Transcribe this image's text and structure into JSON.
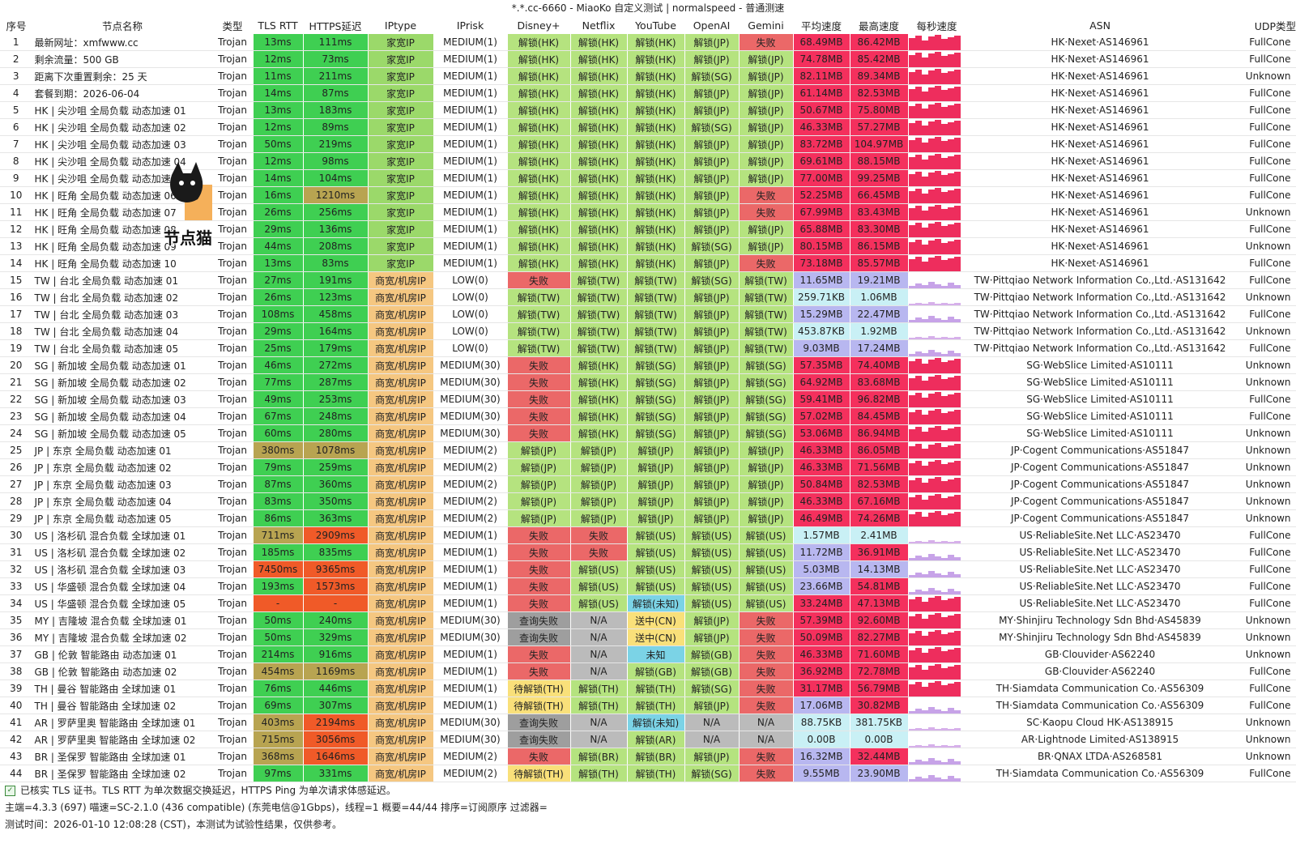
{
  "window": {
    "title": "*.*.cc-6660 - MiaoKo 自定义测试 | normalspeed - 普通测速"
  },
  "headers": [
    "序号",
    "节点名称",
    "类型",
    "TLS RTT",
    "HTTPS延迟",
    "IPtype",
    "IPrisk",
    "Disney+",
    "Netflix",
    "YouTube",
    "OpenAI",
    "Gemini",
    "平均速度",
    "最高速度",
    "每秒速度",
    "ASN",
    "UDP类型"
  ],
  "rows": [
    [
      "1",
      "最新网址：xmfwww.cc",
      "Trojan",
      "13ms",
      "111ms",
      "家宽IP",
      "MEDIUM(1)",
      "解锁(HK)",
      "解锁(HK)",
      "解锁(HK)",
      "解锁(JP)",
      "失败",
      "68.49MB",
      "86.42MB",
      "",
      "HK·Nexet·AS146961",
      "FullCone"
    ],
    [
      "2",
      "剩余流量：500 GB",
      "Trojan",
      "12ms",
      "73ms",
      "家宽IP",
      "MEDIUM(1)",
      "解锁(HK)",
      "解锁(HK)",
      "解锁(HK)",
      "解锁(JP)",
      "解锁(JP)",
      "74.78MB",
      "85.42MB",
      "",
      "HK·Nexet·AS146961",
      "FullCone"
    ],
    [
      "3",
      "距离下次重置剩余：25 天",
      "Trojan",
      "11ms",
      "211ms",
      "家宽IP",
      "MEDIUM(1)",
      "解锁(HK)",
      "解锁(HK)",
      "解锁(HK)",
      "解锁(SG)",
      "解锁(JP)",
      "82.11MB",
      "89.34MB",
      "",
      "HK·Nexet·AS146961",
      "Unknown"
    ],
    [
      "4",
      "套餐到期：2026-06-04",
      "Trojan",
      "14ms",
      "87ms",
      "家宽IP",
      "MEDIUM(1)",
      "解锁(HK)",
      "解锁(HK)",
      "解锁(HK)",
      "解锁(JP)",
      "解锁(JP)",
      "61.14MB",
      "82.53MB",
      "",
      "HK·Nexet·AS146961",
      "FullCone"
    ],
    [
      "5",
      "HK | 尖沙咀 全局负载 动态加速 01",
      "Trojan",
      "13ms",
      "183ms",
      "家宽IP",
      "MEDIUM(1)",
      "解锁(HK)",
      "解锁(HK)",
      "解锁(HK)",
      "解锁(JP)",
      "解锁(JP)",
      "50.67MB",
      "75.80MB",
      "",
      "HK·Nexet·AS146961",
      "FullCone"
    ],
    [
      "6",
      "HK | 尖沙咀 全局负载 动态加速 02",
      "Trojan",
      "12ms",
      "89ms",
      "家宽IP",
      "MEDIUM(1)",
      "解锁(HK)",
      "解锁(HK)",
      "解锁(HK)",
      "解锁(SG)",
      "解锁(JP)",
      "46.33MB",
      "57.27MB",
      "",
      "HK·Nexet·AS146961",
      "FullCone"
    ],
    [
      "7",
      "HK | 尖沙咀 全局负载 动态加速 03",
      "Trojan",
      "50ms",
      "219ms",
      "家宽IP",
      "MEDIUM(1)",
      "解锁(HK)",
      "解锁(HK)",
      "解锁(HK)",
      "解锁(JP)",
      "解锁(JP)",
      "83.72MB",
      "104.97MB",
      "",
      "HK·Nexet·AS146961",
      "FullCone"
    ],
    [
      "8",
      "HK | 尖沙咀 全局负载 动态加速 04",
      "Trojan",
      "12ms",
      "98ms",
      "家宽IP",
      "MEDIUM(1)",
      "解锁(HK)",
      "解锁(HK)",
      "解锁(HK)",
      "解锁(JP)",
      "解锁(JP)",
      "69.61MB",
      "88.15MB",
      "",
      "HK·Nexet·AS146961",
      "FullCone"
    ],
    [
      "9",
      "HK | 尖沙咀 全局负载 动态加速 05",
      "Trojan",
      "14ms",
      "104ms",
      "家宽IP",
      "MEDIUM(1)",
      "解锁(HK)",
      "解锁(HK)",
      "解锁(HK)",
      "解锁(JP)",
      "解锁(JP)",
      "77.00MB",
      "99.25MB",
      "",
      "HK·Nexet·AS146961",
      "FullCone"
    ],
    [
      "10",
      "HK | 旺角 全局负载 动态加速 06",
      "Trojan",
      "16ms",
      "1210ms",
      "家宽IP",
      "MEDIUM(1)",
      "解锁(HK)",
      "解锁(HK)",
      "解锁(HK)",
      "解锁(JP)",
      "失败",
      "52.25MB",
      "66.45MB",
      "",
      "HK·Nexet·AS146961",
      "FullCone"
    ],
    [
      "11",
      "HK | 旺角 全局负载 动态加速 07",
      "Trojan",
      "26ms",
      "256ms",
      "家宽IP",
      "MEDIUM(1)",
      "解锁(HK)",
      "解锁(HK)",
      "解锁(HK)",
      "解锁(JP)",
      "失败",
      "67.99MB",
      "83.43MB",
      "",
      "HK·Nexet·AS146961",
      "Unknown"
    ],
    [
      "12",
      "HK | 旺角 全局负载 动态加速 08",
      "Trojan",
      "29ms",
      "136ms",
      "家宽IP",
      "MEDIUM(1)",
      "解锁(HK)",
      "解锁(HK)",
      "解锁(HK)",
      "解锁(JP)",
      "解锁(JP)",
      "65.88MB",
      "83.30MB",
      "",
      "HK·Nexet·AS146961",
      "FullCone"
    ],
    [
      "13",
      "HK | 旺角 全局负载 动态加速 09",
      "Trojan",
      "44ms",
      "208ms",
      "家宽IP",
      "MEDIUM(1)",
      "解锁(HK)",
      "解锁(HK)",
      "解锁(HK)",
      "解锁(SG)",
      "解锁(JP)",
      "80.15MB",
      "86.15MB",
      "",
      "HK·Nexet·AS146961",
      "Unknown"
    ],
    [
      "14",
      "HK | 旺角 全局负载 动态加速 10",
      "Trojan",
      "13ms",
      "83ms",
      "家宽IP",
      "MEDIUM(1)",
      "解锁(HK)",
      "解锁(HK)",
      "解锁(HK)",
      "解锁(JP)",
      "失败",
      "73.18MB",
      "85.57MB",
      "",
      "HK·Nexet·AS146961",
      "FullCone"
    ],
    [
      "15",
      "TW | 台北 全局负载 动态加速 01",
      "Trojan",
      "27ms",
      "191ms",
      "商宽/机房IP",
      "LOW(0)",
      "失败",
      "解锁(TW)",
      "解锁(TW)",
      "解锁(SG)",
      "解锁(TW)",
      "11.65MB",
      "19.21MB",
      "",
      "TW·Pittqiao Network Information Co.,Ltd.·AS131642",
      "FullCone"
    ],
    [
      "16",
      "TW | 台北 全局负载 动态加速 02",
      "Trojan",
      "26ms",
      "123ms",
      "商宽/机房IP",
      "LOW(0)",
      "解锁(TW)",
      "解锁(TW)",
      "解锁(TW)",
      "解锁(JP)",
      "解锁(TW)",
      "259.71KB",
      "1.06MB",
      "",
      "TW·Pittqiao Network Information Co.,Ltd.·AS131642",
      "Unknown"
    ],
    [
      "17",
      "TW | 台北 全局负载 动态加速 03",
      "Trojan",
      "108ms",
      "458ms",
      "商宽/机房IP",
      "LOW(0)",
      "解锁(TW)",
      "解锁(TW)",
      "解锁(TW)",
      "解锁(JP)",
      "解锁(TW)",
      "15.29MB",
      "22.47MB",
      "",
      "TW·Pittqiao Network Information Co.,Ltd.·AS131642",
      "FullCone"
    ],
    [
      "18",
      "TW | 台北 全局负载 动态加速 04",
      "Trojan",
      "29ms",
      "164ms",
      "商宽/机房IP",
      "LOW(0)",
      "解锁(TW)",
      "解锁(TW)",
      "解锁(TW)",
      "解锁(JP)",
      "解锁(TW)",
      "453.87KB",
      "1.92MB",
      "",
      "TW·Pittqiao Network Information Co.,Ltd.·AS131642",
      "Unknown"
    ],
    [
      "19",
      "TW | 台北 全局负载 动态加速 05",
      "Trojan",
      "25ms",
      "179ms",
      "商宽/机房IP",
      "LOW(0)",
      "解锁(TW)",
      "解锁(TW)",
      "解锁(TW)",
      "解锁(JP)",
      "解锁(TW)",
      "9.03MB",
      "17.24MB",
      "",
      "TW·Pittqiao Network Information Co.,Ltd.·AS131642",
      "FullCone"
    ],
    [
      "20",
      "SG | 新加坡 全局负载 动态加速 01",
      "Trojan",
      "46ms",
      "272ms",
      "商宽/机房IP",
      "MEDIUM(30)",
      "失败",
      "解锁(HK)",
      "解锁(SG)",
      "解锁(JP)",
      "解锁(SG)",
      "57.35MB",
      "74.40MB",
      "",
      "SG·WebSlice Limited·AS10111",
      "Unknown"
    ],
    [
      "21",
      "SG | 新加坡 全局负载 动态加速 02",
      "Trojan",
      "77ms",
      "287ms",
      "商宽/机房IP",
      "MEDIUM(30)",
      "失败",
      "解锁(HK)",
      "解锁(SG)",
      "解锁(JP)",
      "解锁(SG)",
      "64.92MB",
      "83.68MB",
      "",
      "SG·WebSlice Limited·AS10111",
      "Unknown"
    ],
    [
      "22",
      "SG | 新加坡 全局负载 动态加速 03",
      "Trojan",
      "49ms",
      "253ms",
      "商宽/机房IP",
      "MEDIUM(30)",
      "失败",
      "解锁(HK)",
      "解锁(SG)",
      "解锁(JP)",
      "解锁(SG)",
      "59.41MB",
      "96.82MB",
      "",
      "SG·WebSlice Limited·AS10111",
      "FullCone"
    ],
    [
      "23",
      "SG | 新加坡 全局负载 动态加速 04",
      "Trojan",
      "67ms",
      "248ms",
      "商宽/机房IP",
      "MEDIUM(30)",
      "失败",
      "解锁(HK)",
      "解锁(SG)",
      "解锁(JP)",
      "解锁(SG)",
      "57.02MB",
      "84.45MB",
      "",
      "SG·WebSlice Limited·AS10111",
      "FullCone"
    ],
    [
      "24",
      "SG | 新加坡 全局负载 动态加速 05",
      "Trojan",
      "60ms",
      "280ms",
      "商宽/机房IP",
      "MEDIUM(30)",
      "失败",
      "解锁(HK)",
      "解锁(SG)",
      "解锁(JP)",
      "解锁(SG)",
      "53.06MB",
      "86.94MB",
      "",
      "SG·WebSlice Limited·AS10111",
      "Unknown"
    ],
    [
      "25",
      "JP | 东京 全局负载 动态加速 01",
      "Trojan",
      "380ms",
      "1078ms",
      "商宽/机房IP",
      "MEDIUM(2)",
      "解锁(JP)",
      "解锁(JP)",
      "解锁(JP)",
      "解锁(JP)",
      "解锁(JP)",
      "46.33MB",
      "86.05MB",
      "",
      "JP·Cogent Communications·AS51847",
      "Unknown"
    ],
    [
      "26",
      "JP | 东京 全局负载 动态加速 02",
      "Trojan",
      "79ms",
      "259ms",
      "商宽/机房IP",
      "MEDIUM(2)",
      "解锁(JP)",
      "解锁(JP)",
      "解锁(JP)",
      "解锁(JP)",
      "解锁(JP)",
      "46.33MB",
      "71.56MB",
      "",
      "JP·Cogent Communications·AS51847",
      "Unknown"
    ],
    [
      "27",
      "JP | 东京 全局负载 动态加速 03",
      "Trojan",
      "87ms",
      "360ms",
      "商宽/机房IP",
      "MEDIUM(2)",
      "解锁(JP)",
      "解锁(JP)",
      "解锁(JP)",
      "解锁(JP)",
      "解锁(JP)",
      "50.84MB",
      "82.53MB",
      "",
      "JP·Cogent Communications·AS51847",
      "Unknown"
    ],
    [
      "28",
      "JP | 东京 全局负载 动态加速 04",
      "Trojan",
      "83ms",
      "350ms",
      "商宽/机房IP",
      "MEDIUM(2)",
      "解锁(JP)",
      "解锁(JP)",
      "解锁(JP)",
      "解锁(JP)",
      "解锁(JP)",
      "46.33MB",
      "67.16MB",
      "",
      "JP·Cogent Communications·AS51847",
      "Unknown"
    ],
    [
      "29",
      "JP | 东京 全局负载 动态加速 05",
      "Trojan",
      "86ms",
      "363ms",
      "商宽/机房IP",
      "MEDIUM(2)",
      "解锁(JP)",
      "解锁(JP)",
      "解锁(JP)",
      "解锁(JP)",
      "解锁(JP)",
      "46.49MB",
      "74.26MB",
      "",
      "JP·Cogent Communications·AS51847",
      "Unknown"
    ],
    [
      "30",
      "US | 洛杉矶 混合负载 全球加速 01",
      "Trojan",
      "711ms",
      "2909ms",
      "商宽/机房IP",
      "MEDIUM(1)",
      "失败",
      "失败",
      "解锁(US)",
      "解锁(US)",
      "解锁(US)",
      "1.57MB",
      "2.41MB",
      "",
      "US·ReliableSite.Net LLC·AS23470",
      "FullCone"
    ],
    [
      "31",
      "US | 洛杉矶 混合负载 全球加速 02",
      "Trojan",
      "185ms",
      "835ms",
      "商宽/机房IP",
      "MEDIUM(1)",
      "失败",
      "失败",
      "解锁(US)",
      "解锁(US)",
      "解锁(US)",
      "11.72MB",
      "36.91MB",
      "",
      "US·ReliableSite.Net LLC·AS23470",
      "FullCone"
    ],
    [
      "32",
      "US | 洛杉矶 混合负载 全球加速 03",
      "Trojan",
      "7450ms",
      "9365ms",
      "商宽/机房IP",
      "MEDIUM(1)",
      "失败",
      "解锁(US)",
      "解锁(US)",
      "解锁(US)",
      "解锁(US)",
      "5.03MB",
      "14.13MB",
      "",
      "US·ReliableSite.Net LLC·AS23470",
      "FullCone"
    ],
    [
      "33",
      "US | 华盛顿 混合负载 全球加速 04",
      "Trojan",
      "193ms",
      "1573ms",
      "商宽/机房IP",
      "MEDIUM(1)",
      "失败",
      "解锁(US)",
      "解锁(US)",
      "解锁(US)",
      "解锁(US)",
      "23.66MB",
      "54.81MB",
      "",
      "US·ReliableSite.Net LLC·AS23470",
      "FullCone"
    ],
    [
      "34",
      "US | 华盛顿 混合负载 全球加速 05",
      "Trojan",
      "-",
      "-",
      "商宽/机房IP",
      "MEDIUM(1)",
      "失败",
      "解锁(US)",
      "解锁(未知)",
      "解锁(US)",
      "解锁(US)",
      "33.24MB",
      "47.13MB",
      "",
      "US·ReliableSite.Net LLC·AS23470",
      "FullCone"
    ],
    [
      "35",
      "MY | 吉隆坡 混合负载 全球加速 01",
      "Trojan",
      "50ms",
      "240ms",
      "商宽/机房IP",
      "MEDIUM(30)",
      "查询失败",
      "N/A",
      "送中(CN)",
      "解锁(JP)",
      "失败",
      "57.39MB",
      "92.60MB",
      "",
      "MY·Shinjiru Technology Sdn Bhd·AS45839",
      "Unknown"
    ],
    [
      "36",
      "MY | 吉隆坡 混合负载 全球加速 02",
      "Trojan",
      "50ms",
      "329ms",
      "商宽/机房IP",
      "MEDIUM(30)",
      "查询失败",
      "N/A",
      "送中(CN)",
      "解锁(JP)",
      "失败",
      "50.09MB",
      "82.27MB",
      "",
      "MY·Shinjiru Technology Sdn Bhd·AS45839",
      "Unknown"
    ],
    [
      "37",
      "GB | 伦敦 智能路由 动态加速 01",
      "Trojan",
      "214ms",
      "916ms",
      "商宽/机房IP",
      "MEDIUM(1)",
      "失败",
      "N/A",
      "未知",
      "解锁(GB)",
      "失败",
      "46.33MB",
      "71.60MB",
      "",
      "GB·Clouvider·AS62240",
      "Unknown"
    ],
    [
      "38",
      "GB | 伦敦 智能路由 动态加速 02",
      "Trojan",
      "454ms",
      "1169ms",
      "商宽/机房IP",
      "MEDIUM(1)",
      "失败",
      "N/A",
      "解锁(GB)",
      "解锁(GB)",
      "失败",
      "36.92MB",
      "72.78MB",
      "",
      "GB·Clouvider·AS62240",
      "FullCone"
    ],
    [
      "39",
      "TH | 曼谷 智能路由 全球加速 01",
      "Trojan",
      "76ms",
      "446ms",
      "商宽/机房IP",
      "MEDIUM(1)",
      "待解锁(TH)",
      "解锁(TH)",
      "解锁(TH)",
      "解锁(SG)",
      "失败",
      "31.17MB",
      "56.79MB",
      "",
      "TH·Siamdata Communication Co.·AS56309",
      "FullCone"
    ],
    [
      "40",
      "TH | 曼谷 智能路由 全球加速 02",
      "Trojan",
      "69ms",
      "307ms",
      "商宽/机房IP",
      "MEDIUM(1)",
      "待解锁(TH)",
      "解锁(TH)",
      "解锁(TH)",
      "解锁(JP)",
      "失败",
      "17.06MB",
      "30.82MB",
      "",
      "TH·Siamdata Communication Co.·AS56309",
      "FullCone"
    ],
    [
      "41",
      "AR | 罗萨里奥 智能路由 全球加速 01",
      "Trojan",
      "403ms",
      "2194ms",
      "商宽/机房IP",
      "MEDIUM(30)",
      "查询失败",
      "N/A",
      "解锁(未知)",
      "N/A",
      "N/A",
      "88.75KB",
      "381.75KB",
      "",
      "SC·Kaopu Cloud HK·AS138915",
      "Unknown"
    ],
    [
      "42",
      "AR | 罗萨里奥 智能路由 全球加速 02",
      "Trojan",
      "715ms",
      "3056ms",
      "商宽/机房IP",
      "MEDIUM(30)",
      "查询失败",
      "N/A",
      "解锁(AR)",
      "N/A",
      "N/A",
      "0.00B",
      "0.00B",
      "",
      "AR·Lightnode Limited·AS138915",
      "Unknown"
    ],
    [
      "43",
      "BR | 圣保罗 智能路由 全球加速 01",
      "Trojan",
      "368ms",
      "1646ms",
      "商宽/机房IP",
      "MEDIUM(2)",
      "失败",
      "解锁(BR)",
      "解锁(BR)",
      "解锁(JP)",
      "失败",
      "16.32MB",
      "32.44MB",
      "",
      "BR·QNAX LTDA·AS268581",
      "Unknown"
    ],
    [
      "44",
      "BR | 圣保罗 智能路由 全球加速 02",
      "Trojan",
      "97ms",
      "331ms",
      "商宽/机房IP",
      "MEDIUM(2)",
      "待解锁(TH)",
      "解锁(TH)",
      "解锁(TH)",
      "解锁(SG)",
      "失败",
      "9.55MB",
      "23.90MB",
      "",
      "TH·Siamdata Communication Co.·AS56309",
      "FullCone"
    ]
  ],
  "footer": {
    "line1": "已核实 TLS 证书。TLS RTT 为单次数据交换延迟，HTTPS Ping 为单次请求体感延迟。",
    "line2": "主端=4.3.3 (697) 喵速=SC-2.1.0 (436 compatible) (东莞电信@1Gbps)，线程=1 概要=44/44 排序=订阅原序 过滤器=",
    "line3": "测试时间：2026-01-10 12:08:28 (CST)，本测试为试验性结果，仅供参考。"
  },
  "watermark": {
    "text": "节点猫"
  },
  "colors": {
    "green": "#3fcf52",
    "light_green": "#b5e37f",
    "orange_ip": "#f5c781",
    "fail_red": "#eb6868",
    "speed_pink": "#f4305d",
    "lavender": "#b8b7f0"
  }
}
